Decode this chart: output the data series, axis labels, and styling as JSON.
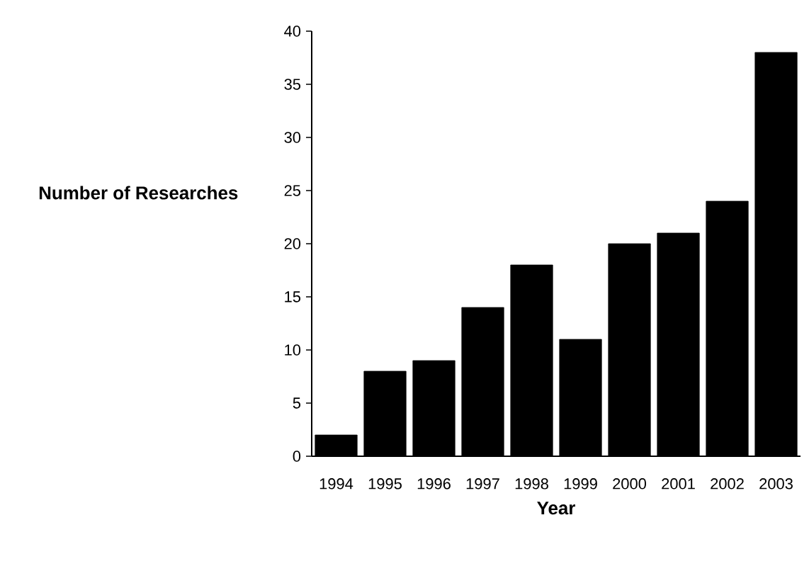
{
  "chart_data": {
    "type": "bar",
    "xlabel": "Year",
    "ylabel": "Number of Researches",
    "categories": [
      "1994",
      "1995",
      "1996",
      "1997",
      "1998",
      "1999",
      "2000",
      "2001",
      "2002",
      "2003"
    ],
    "values": [
      2,
      8,
      9,
      14,
      18,
      11,
      20,
      21,
      24,
      38
    ],
    "color": "#000000",
    "ylim": [
      0,
      40
    ],
    "yticks": [
      0,
      5,
      10,
      15,
      20,
      25,
      30,
      35,
      40
    ]
  }
}
